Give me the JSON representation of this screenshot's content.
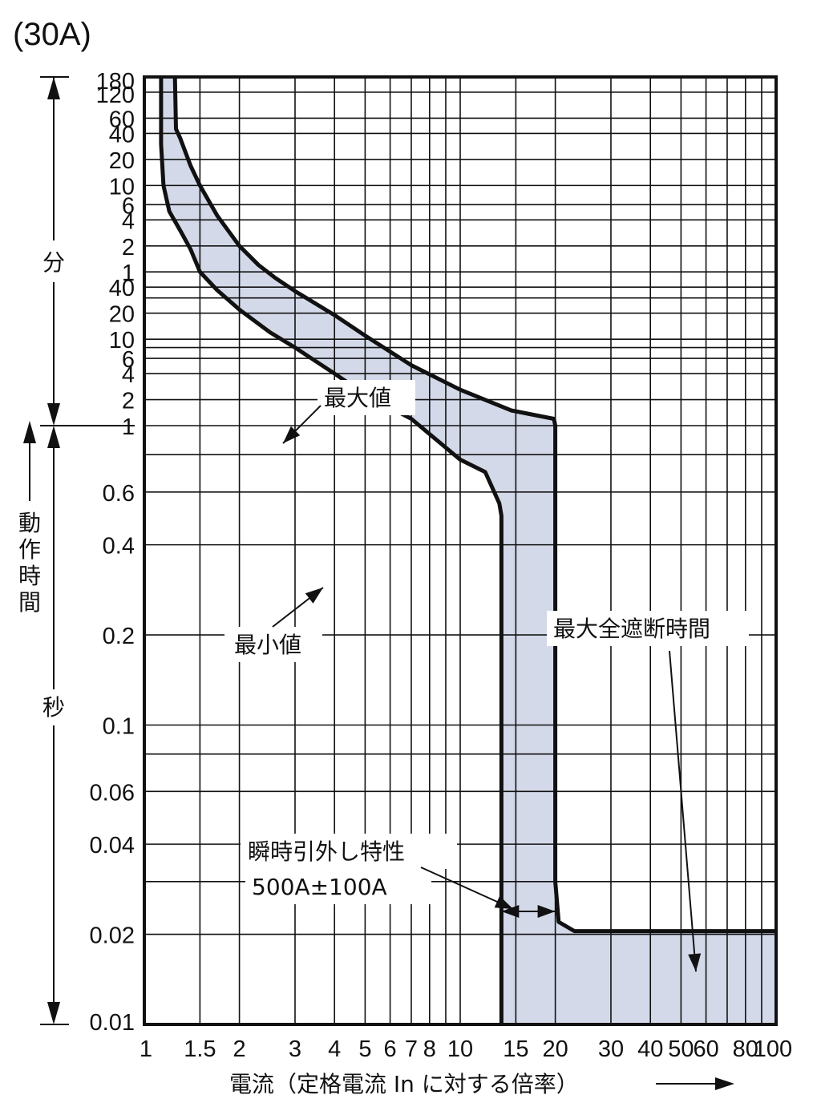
{
  "chart_data": {
    "type": "line",
    "title": "(30A)",
    "xlabel": "電流（定格電流 In に対する倍率）",
    "x_scale": "log",
    "y_scale": "log",
    "xlim": [
      1,
      100
    ],
    "ylim_seconds": [
      0.01,
      10800
    ],
    "grid": true,
    "x_ticks": [
      "1",
      "1.5",
      "2",
      "3",
      "4",
      "5",
      "6",
      "7",
      "8",
      "10",
      "15",
      "20",
      "30",
      "40",
      "50",
      "60",
      "80",
      "100"
    ],
    "x_tick_values": [
      1,
      1.5,
      2,
      3,
      4,
      5,
      6,
      7,
      8,
      10,
      15,
      20,
      30,
      40,
      50,
      60,
      80,
      100
    ],
    "y_axis_label": "動作時間",
    "y_unit_minutes": "分",
    "y_unit_seconds": "秒",
    "y_ticks_minutes": [
      "180",
      "120",
      "60",
      "40",
      "20",
      "10",
      "6",
      "4",
      "2",
      "1"
    ],
    "y_ticks_minutes_values": [
      180,
      120,
      60,
      40,
      20,
      10,
      6,
      4,
      2,
      1
    ],
    "y_ticks_seconds": [
      "40",
      "20",
      "10",
      "6",
      "4",
      "2",
      "1",
      "0.6",
      "0.4",
      "0.2",
      "0.1",
      "0.06",
      "0.04",
      "0.02",
      "0.01"
    ],
    "y_ticks_seconds_values": [
      40,
      20,
      10,
      6,
      4,
      2,
      1,
      0.6,
      0.4,
      0.2,
      0.1,
      0.06,
      0.04,
      0.02,
      0.01
    ],
    "series": [
      {
        "name": "最大値",
        "points_x_multiple_y_seconds": [
          [
            1.25,
            10800
          ],
          [
            1.26,
            2700
          ],
          [
            1.3,
            2100
          ],
          [
            1.4,
            1020
          ],
          [
            1.5,
            600
          ],
          [
            1.7,
            270
          ],
          [
            2.0,
            120
          ],
          [
            2.3,
            72
          ],
          [
            2.6,
            51
          ],
          [
            3.0,
            36
          ],
          [
            4.0,
            19
          ],
          [
            5.0,
            11
          ],
          [
            7.0,
            5.0
          ],
          [
            10.0,
            2.6
          ],
          [
            14.5,
            1.5
          ],
          [
            19.8,
            1.2
          ],
          [
            20.0,
            1.0
          ],
          [
            20.0,
            0.03
          ],
          [
            20.5,
            0.022
          ],
          [
            23.0,
            0.0205
          ],
          [
            100,
            0.0205
          ]
        ]
      },
      {
        "name": "最小値",
        "points_x_multiple_y_seconds": [
          [
            1.13,
            10800
          ],
          [
            1.13,
            1800
          ],
          [
            1.15,
            600
          ],
          [
            1.2,
            300
          ],
          [
            1.3,
            180
          ],
          [
            1.4,
            110
          ],
          [
            1.5,
            60
          ],
          [
            1.7,
            37
          ],
          [
            2.0,
            22
          ],
          [
            2.5,
            12
          ],
          [
            3.0,
            8.0
          ],
          [
            4.0,
            4.0
          ],
          [
            5.0,
            2.3
          ],
          [
            7.0,
            1.2
          ],
          [
            10.0,
            0.77
          ],
          [
            12.0,
            0.7
          ],
          [
            13.3,
            0.55
          ],
          [
            13.5,
            0.5
          ],
          [
            13.5,
            0.01
          ]
        ]
      }
    ],
    "annotations": [
      {
        "text": "最大値"
      },
      {
        "text": "最小値"
      },
      {
        "text": "最大全遮断時間"
      },
      {
        "text": "瞬時引外し特性"
      },
      {
        "text": "500A±100A"
      }
    ],
    "colors": {
      "band_fill": "#d3d9e8",
      "line": "#111111",
      "grid": "#111111"
    }
  }
}
